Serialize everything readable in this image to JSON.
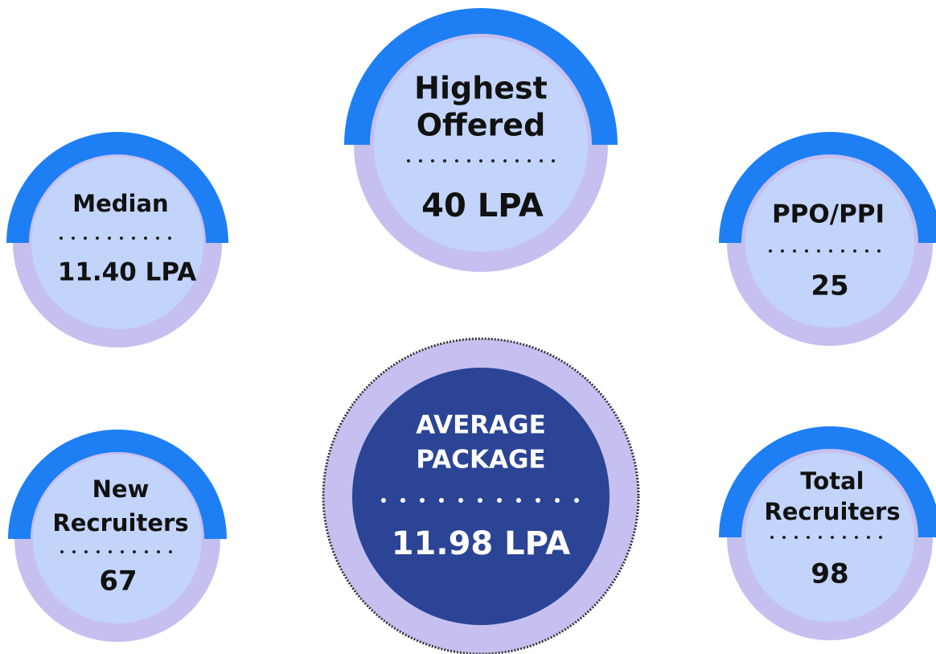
{
  "items": [
    {
      "label": [
        "Highest",
        "Offered"
      ],
      "value": "40 LPA"
    },
    {
      "label": [
        "Median"
      ],
      "value": "11.40 LPA"
    },
    {
      "label": [
        "PPO/PPI"
      ],
      "value": "25"
    },
    {
      "label": [
        "New",
        "Recruiters"
      ],
      "value": "67"
    },
    {
      "label": [
        "Total",
        "Recruiters"
      ],
      "value": "98"
    },
    {
      "label": [
        "AVERAGE",
        "PACKAGE"
      ],
      "value": "11.98 LPA"
    }
  ]
}
